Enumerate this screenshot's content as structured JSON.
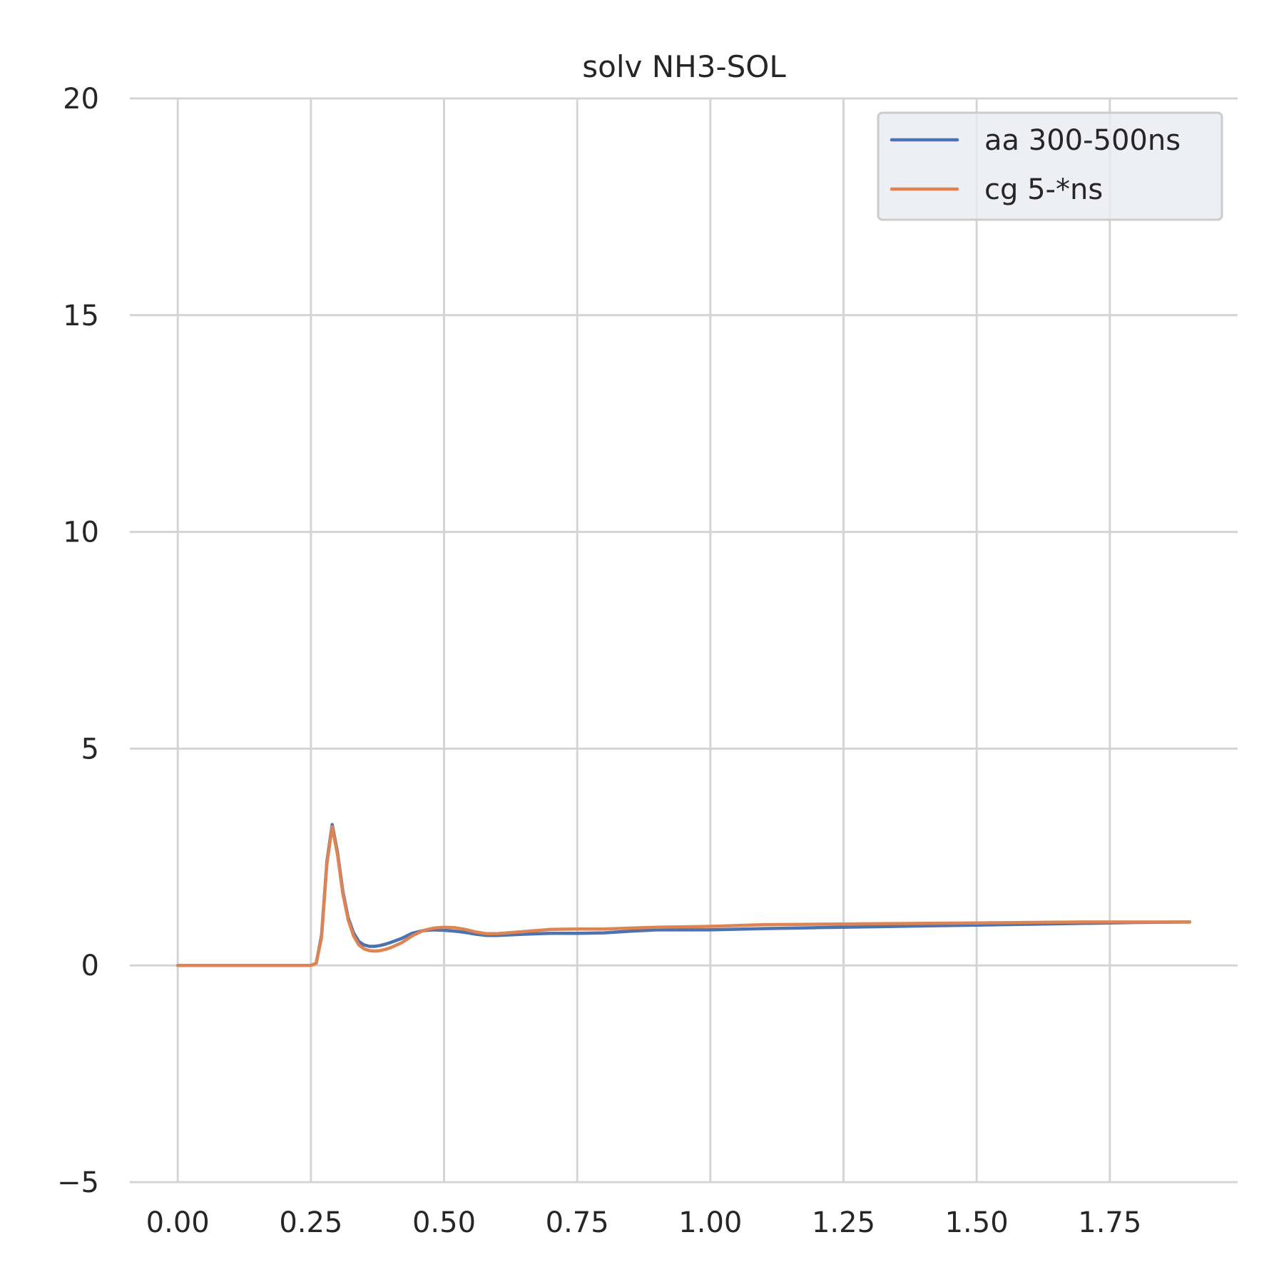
{
  "chart_data": {
    "type": "line",
    "title": "solv NH3-SOL",
    "xlabel": "",
    "ylabel": "",
    "xlim": [
      -0.09,
      1.99
    ],
    "ylim": [
      -5,
      20
    ],
    "xticks": [
      0.0,
      0.25,
      0.5,
      0.75,
      1.0,
      1.25,
      1.5,
      1.75
    ],
    "xtick_labels": [
      "0.00",
      "0.25",
      "0.50",
      "0.75",
      "1.00",
      "1.25",
      "1.50",
      "1.75"
    ],
    "yticks": [
      -5,
      0,
      5,
      10,
      15,
      20
    ],
    "ytick_labels": [
      "−5",
      "0",
      "5",
      "10",
      "15",
      "20"
    ],
    "grid": true,
    "legend_position": "top-right",
    "series": [
      {
        "name": "aa 300-500ns",
        "color": "#4c72b0",
        "x": [
          0.0,
          0.05,
          0.1,
          0.15,
          0.2,
          0.25,
          0.26,
          0.27,
          0.28,
          0.29,
          0.3,
          0.31,
          0.32,
          0.33,
          0.34,
          0.35,
          0.36,
          0.37,
          0.38,
          0.39,
          0.4,
          0.42,
          0.44,
          0.46,
          0.48,
          0.5,
          0.52,
          0.54,
          0.56,
          0.58,
          0.6,
          0.65,
          0.7,
          0.75,
          0.8,
          0.85,
          0.9,
          1.0,
          1.1,
          1.2,
          1.3,
          1.4,
          1.5,
          1.6,
          1.7,
          1.8,
          1.9
        ],
        "y": [
          0,
          0,
          0,
          0,
          0,
          0,
          0.05,
          0.7,
          2.4,
          3.25,
          2.6,
          1.7,
          1.1,
          0.75,
          0.55,
          0.47,
          0.44,
          0.44,
          0.46,
          0.49,
          0.53,
          0.62,
          0.74,
          0.8,
          0.82,
          0.81,
          0.79,
          0.76,
          0.72,
          0.69,
          0.69,
          0.72,
          0.74,
          0.74,
          0.75,
          0.79,
          0.82,
          0.82,
          0.85,
          0.87,
          0.89,
          0.91,
          0.93,
          0.95,
          0.97,
          0.99,
          1.0
        ]
      },
      {
        "name": "cg 5-*ns",
        "color": "#dd8452",
        "x": [
          0.0,
          0.05,
          0.1,
          0.15,
          0.2,
          0.25,
          0.26,
          0.27,
          0.28,
          0.29,
          0.3,
          0.31,
          0.32,
          0.33,
          0.34,
          0.35,
          0.36,
          0.37,
          0.38,
          0.39,
          0.4,
          0.42,
          0.44,
          0.46,
          0.48,
          0.5,
          0.52,
          0.54,
          0.56,
          0.58,
          0.6,
          0.65,
          0.7,
          0.75,
          0.8,
          0.85,
          0.9,
          1.0,
          1.1,
          1.2,
          1.3,
          1.4,
          1.5,
          1.6,
          1.7,
          1.8,
          1.9
        ],
        "y": [
          0,
          0,
          0,
          0,
          0,
          0,
          0.05,
          0.65,
          2.35,
          3.2,
          2.55,
          1.65,
          1.05,
          0.68,
          0.47,
          0.38,
          0.34,
          0.33,
          0.34,
          0.37,
          0.41,
          0.52,
          0.68,
          0.8,
          0.86,
          0.88,
          0.87,
          0.83,
          0.77,
          0.73,
          0.73,
          0.78,
          0.83,
          0.84,
          0.84,
          0.86,
          0.88,
          0.9,
          0.94,
          0.95,
          0.96,
          0.97,
          0.98,
          0.99,
          1.0,
          1.0,
          1.0
        ]
      }
    ]
  }
}
